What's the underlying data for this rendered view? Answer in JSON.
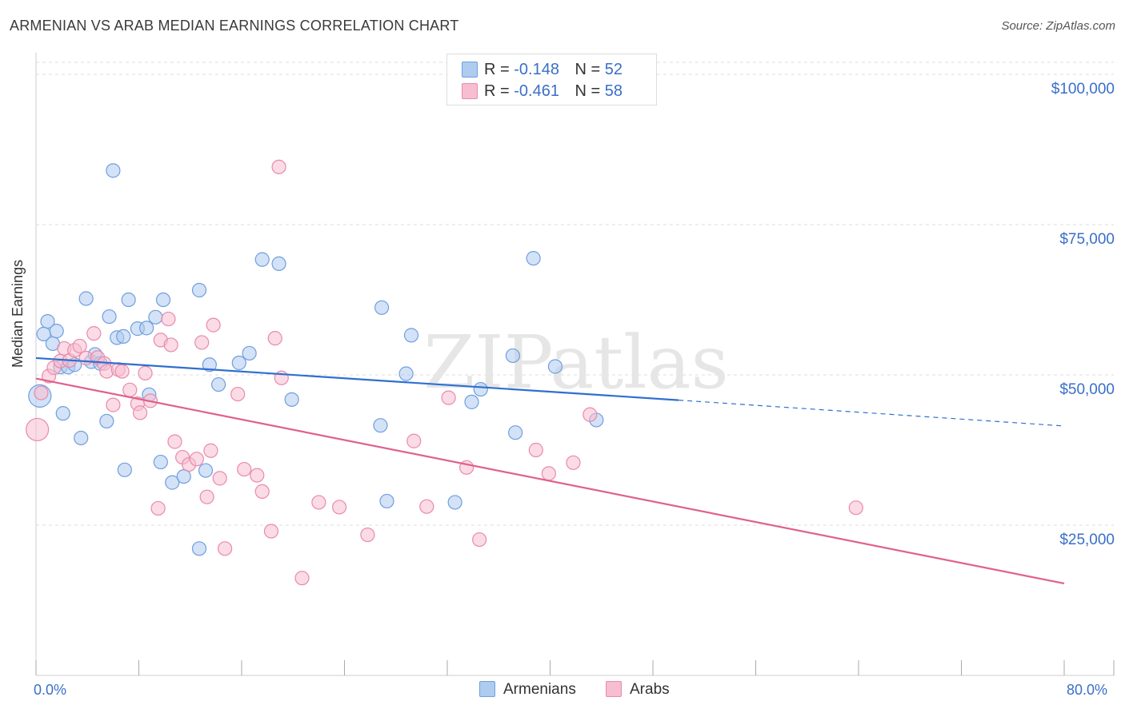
{
  "title": "ARMENIAN VS ARAB MEDIAN EARNINGS CORRELATION CHART",
  "source": "Source: ZipAtlas.com",
  "watermark": "ZIPatlas",
  "legend": {
    "rows": [
      {
        "r_label": "R =",
        "r_value": "-0.148",
        "n_label": "N =",
        "n_value": "52"
      },
      {
        "r_label": "R =",
        "r_value": "-0.461",
        "n_label": "N =",
        "n_value": "58"
      }
    ]
  },
  "bottom_legend": {
    "armenians": "Armenians",
    "arabs": "Arabs"
  },
  "x_labels": {
    "min": "0.0%",
    "max": "80.0%"
  },
  "colors": {
    "armenians_fill": "#aecbf0",
    "armenians_stroke": "#6f9fde",
    "armenians_line": "#2f6fd0",
    "arabs_fill": "#f7bdd0",
    "arabs_stroke": "#e98aab",
    "arabs_line": "#e0608e",
    "axis_text": "#3a6fc7",
    "grid": "#dddddd"
  },
  "chart_data": {
    "type": "scatter",
    "title": "ARMENIAN VS ARAB MEDIAN EARNINGS CORRELATION CHART",
    "xlabel": "",
    "ylabel": "Median Earnings",
    "xlim": [
      0,
      80
    ],
    "ylim": [
      0,
      102000
    ],
    "y_ticks": [
      {
        "value": 25000,
        "label": "$25,000"
      },
      {
        "value": 50000,
        "label": "$50,000"
      },
      {
        "value": 75000,
        "label": "$75,000"
      },
      {
        "value": 100000,
        "label": "$100,000"
      }
    ],
    "x_ticks": [
      0,
      8,
      16,
      24,
      32,
      40,
      48,
      56,
      64,
      72,
      80
    ],
    "series": [
      {
        "name": "Armenians",
        "r": -0.148,
        "n": 52,
        "trend": {
          "x0": 0,
          "y0": 52800,
          "x1": 50,
          "y1": 45800,
          "dash_x1": 80,
          "dash_y1": 41500
        },
        "points": [
          [
            0.3,
            46500
          ],
          [
            0.6,
            56800
          ],
          [
            0.9,
            58900
          ],
          [
            1.3,
            55200
          ],
          [
            1.6,
            57300
          ],
          [
            1.9,
            51300
          ],
          [
            2.1,
            43600
          ],
          [
            2.5,
            51300
          ],
          [
            3.0,
            51700
          ],
          [
            3.5,
            39500
          ],
          [
            3.9,
            62700
          ],
          [
            4.3,
            52200
          ],
          [
            4.6,
            53400
          ],
          [
            5.0,
            51900
          ],
          [
            5.5,
            42300
          ],
          [
            5.7,
            59700
          ],
          [
            6.0,
            84000
          ],
          [
            6.3,
            56200
          ],
          [
            6.8,
            56400
          ],
          [
            6.9,
            34200
          ],
          [
            7.2,
            62500
          ],
          [
            7.9,
            57700
          ],
          [
            8.6,
            57800
          ],
          [
            8.8,
            46700
          ],
          [
            9.3,
            59600
          ],
          [
            9.7,
            35500
          ],
          [
            9.9,
            62500
          ],
          [
            10.6,
            32100
          ],
          [
            11.5,
            33100
          ],
          [
            12.7,
            64100
          ],
          [
            12.7,
            21100
          ],
          [
            13.2,
            34100
          ],
          [
            13.5,
            51700
          ],
          [
            14.2,
            48400
          ],
          [
            15.8,
            52000
          ],
          [
            16.6,
            53600
          ],
          [
            17.6,
            69200
          ],
          [
            18.9,
            68500
          ],
          [
            19.9,
            45900
          ],
          [
            26.8,
            41600
          ],
          [
            26.9,
            61200
          ],
          [
            27.3,
            29000
          ],
          [
            28.8,
            50200
          ],
          [
            29.2,
            56600
          ],
          [
            32.6,
            28800
          ],
          [
            33.9,
            45500
          ],
          [
            34.6,
            47600
          ],
          [
            37.1,
            53200
          ],
          [
            37.3,
            40400
          ],
          [
            38.7,
            69400
          ],
          [
            40.4,
            51400
          ],
          [
            43.6,
            42500
          ]
        ]
      },
      {
        "name": "Arabs",
        "r": -0.461,
        "n": 58,
        "trend": {
          "x0": 0,
          "y0": 49400,
          "x1": 80,
          "y1": 15300
        },
        "points": [
          [
            0.1,
            40900
          ],
          [
            0.4,
            47000
          ],
          [
            1.0,
            49800
          ],
          [
            1.4,
            51200
          ],
          [
            1.9,
            52300
          ],
          [
            2.2,
            54400
          ],
          [
            2.6,
            52400
          ],
          [
            3.0,
            54100
          ],
          [
            3.4,
            54800
          ],
          [
            3.9,
            52800
          ],
          [
            4.5,
            56900
          ],
          [
            4.8,
            52900
          ],
          [
            5.3,
            51900
          ],
          [
            5.5,
            50600
          ],
          [
            6.0,
            45000
          ],
          [
            6.4,
            50900
          ],
          [
            6.7,
            50600
          ],
          [
            7.3,
            47500
          ],
          [
            7.9,
            45200
          ],
          [
            8.1,
            43700
          ],
          [
            8.5,
            50300
          ],
          [
            8.9,
            45700
          ],
          [
            9.5,
            27800
          ],
          [
            9.7,
            55800
          ],
          [
            10.3,
            59300
          ],
          [
            10.5,
            55000
          ],
          [
            10.8,
            38900
          ],
          [
            11.4,
            36300
          ],
          [
            11.9,
            35100
          ],
          [
            12.5,
            36000
          ],
          [
            12.9,
            55400
          ],
          [
            13.3,
            29700
          ],
          [
            13.6,
            37400
          ],
          [
            13.8,
            58300
          ],
          [
            14.3,
            32800
          ],
          [
            14.7,
            21100
          ],
          [
            15.7,
            46800
          ],
          [
            16.2,
            34300
          ],
          [
            17.2,
            33300
          ],
          [
            17.6,
            30600
          ],
          [
            18.3,
            24000
          ],
          [
            18.6,
            56100
          ],
          [
            19.1,
            49500
          ],
          [
            20.7,
            16200
          ],
          [
            22.0,
            28800
          ],
          [
            23.6,
            28000
          ],
          [
            25.8,
            23400
          ],
          [
            29.4,
            39000
          ],
          [
            30.4,
            28100
          ],
          [
            32.1,
            46200
          ],
          [
            33.5,
            34600
          ],
          [
            34.5,
            22600
          ],
          [
            38.9,
            37500
          ],
          [
            39.9,
            33600
          ],
          [
            41.8,
            35400
          ],
          [
            43.1,
            43400
          ],
          [
            63.8,
            27900
          ],
          [
            18.9,
            84600
          ]
        ]
      }
    ]
  }
}
